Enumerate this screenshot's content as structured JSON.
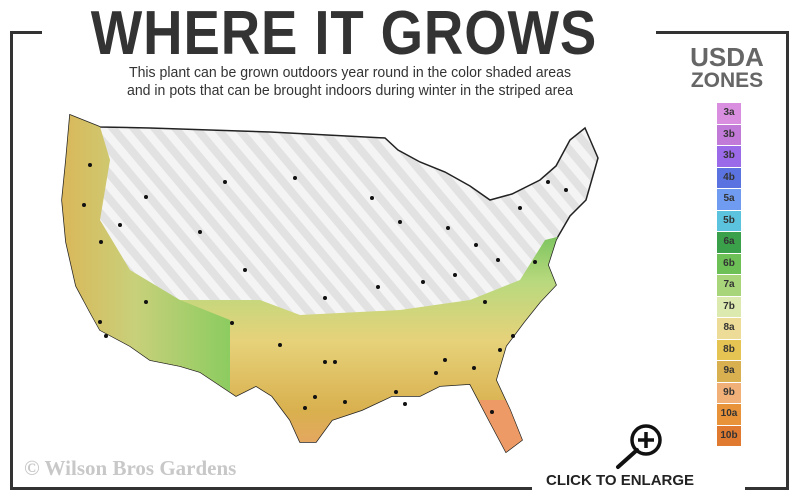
{
  "header": {
    "title": "WHERE IT GROWS",
    "subtitle_line1": "This plant can be grown outdoors year round in the color shaded areas",
    "subtitle_line2": "and in pots that can be brought indoors during winter in the striped area"
  },
  "legend": {
    "title_line1": "USDA",
    "title_line2": "ZONES",
    "zones": [
      {
        "label": "3a",
        "color": "#d98ee0"
      },
      {
        "label": "3b",
        "color": "#c27ad8"
      },
      {
        "label": "3b",
        "color": "#9b6ae8"
      },
      {
        "label": "4b",
        "color": "#5b73e0"
      },
      {
        "label": "5a",
        "color": "#6f9cf0"
      },
      {
        "label": "5b",
        "color": "#5cc3de"
      },
      {
        "label": "6a",
        "color": "#3aa04a"
      },
      {
        "label": "6b",
        "color": "#6cc055"
      },
      {
        "label": "7a",
        "color": "#a8d47a"
      },
      {
        "label": "7b",
        "color": "#dceab0"
      },
      {
        "label": "8a",
        "color": "#ecdc98"
      },
      {
        "label": "8b",
        "color": "#e6c454"
      },
      {
        "label": "9a",
        "color": "#d8b050"
      },
      {
        "label": "9b",
        "color": "#f0b078"
      },
      {
        "label": "10a",
        "color": "#e8923a"
      },
      {
        "label": "10b",
        "color": "#e07a30"
      }
    ]
  },
  "map": {
    "shaded_zones": [
      "6b",
      "7a",
      "7b",
      "8a",
      "8b",
      "9a",
      "9b",
      "10a"
    ],
    "striped_area": "indoor-pot region"
  },
  "footer": {
    "copyright": "© Wilson Bros Gardens",
    "enlarge_label": "CLICK TO ENLARGE"
  }
}
